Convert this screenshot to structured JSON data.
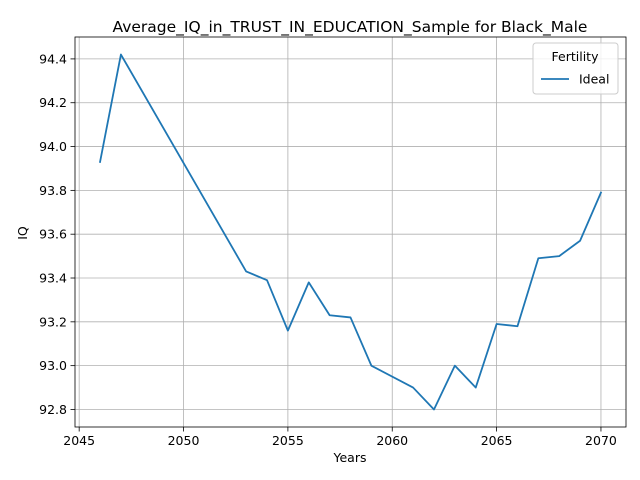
{
  "chart_data": {
    "type": "line",
    "title": "Average_IQ_in_TRUST_IN_EDUCATION_Sample for Black_Male",
    "xlabel": "Years",
    "ylabel": "IQ",
    "xlim": [
      2044.8,
      2071.2
    ],
    "ylim": [
      92.72,
      94.5
    ],
    "x_ticks": [
      2045,
      2050,
      2055,
      2060,
      2065,
      2070
    ],
    "y_ticks": [
      92.8,
      93.0,
      93.2,
      93.4,
      93.6,
      93.8,
      94.0,
      94.2,
      94.4
    ],
    "grid": true,
    "legend": {
      "title": "Fertility",
      "placement": "top-right"
    },
    "series": [
      {
        "name": "Ideal",
        "color": "#1f77b4",
        "x": [
          2046,
          2047,
          2053,
          2054,
          2055,
          2056,
          2057,
          2058,
          2059,
          2061,
          2062,
          2063,
          2064,
          2065,
          2066,
          2067,
          2068,
          2069,
          2070
        ],
        "y": [
          93.93,
          94.42,
          93.43,
          93.39,
          93.16,
          93.38,
          93.23,
          93.22,
          93.0,
          92.9,
          92.8,
          93.0,
          92.9,
          93.19,
          93.18,
          93.49,
          93.5,
          93.57,
          93.79
        ]
      }
    ]
  }
}
